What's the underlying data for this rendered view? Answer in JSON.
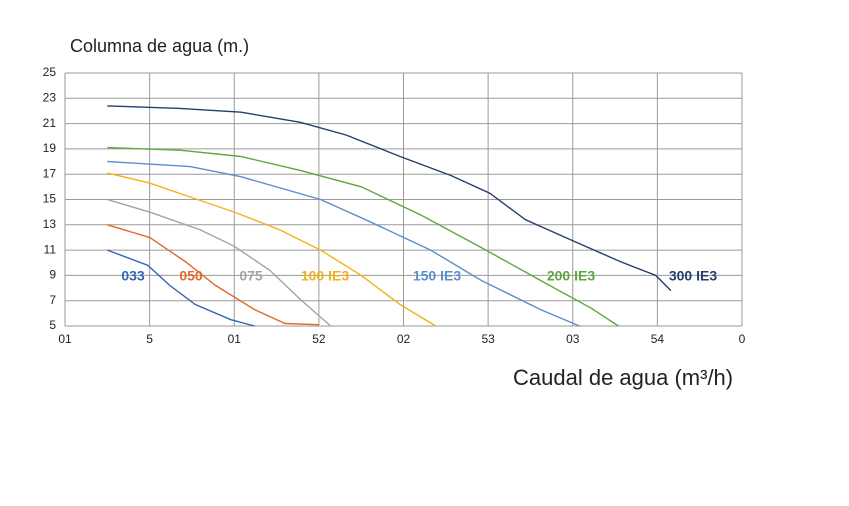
{
  "chart_data": {
    "type": "line",
    "y_label": "Columna de agua (m.)",
    "x_label": "Caudal de agua (m³/h)",
    "xlim": [
      0,
      40
    ],
    "xticks": [
      {
        "value": 0,
        "label": "01"
      },
      5,
      {
        "value": 10,
        "label": "01"
      },
      {
        "value": 15,
        "label": "52"
      },
      {
        "value": 20,
        "label": "02"
      },
      {
        "value": 25,
        "label": "53"
      },
      {
        "value": 30,
        "label": "03"
      },
      {
        "value": 35,
        "label": "54"
      },
      {
        "value": 40,
        "label": "0"
      }
    ],
    "ylim": [
      5,
      25
    ],
    "yticks": [
      5,
      7,
      9,
      11,
      13,
      15,
      17,
      19,
      21,
      23,
      25
    ],
    "grid": true,
    "series": [
      {
        "name": "033",
        "color": "#3465b0",
        "x": [
          2.5,
          4.9,
          6.2,
          7.7,
          9.8,
          11.2
        ],
        "values": [
          11,
          9.8,
          8.2,
          6.7,
          5.5,
          5
        ]
      },
      {
        "name": "050",
        "color": "#e06a2c",
        "x": [
          2.5,
          5,
          7.1,
          8.9,
          11.2,
          13,
          15
        ],
        "values": [
          13,
          12,
          10.1,
          8.2,
          6.3,
          5.2,
          5.1
        ]
      },
      {
        "name": "075",
        "color": "#a3a3a3",
        "x": [
          2.5,
          5,
          8,
          10,
          12.1,
          13.9,
          15.7
        ],
        "values": [
          15,
          14,
          12.6,
          11.3,
          9.4,
          7.1,
          5
        ]
      },
      {
        "name": "100 IE3",
        "color": "#f2b21a",
        "x": [
          2.5,
          5,
          7.4,
          10,
          12.7,
          15.1,
          17.5,
          19.8,
          21.9
        ],
        "values": [
          17.1,
          16.3,
          15.2,
          14,
          12.6,
          11,
          9,
          6.7,
          5
        ]
      },
      {
        "name": "150 IE3",
        "color": "#5b8fcc",
        "x": [
          2.5,
          7.4,
          10.4,
          15.1,
          18.1,
          21.6,
          24.6,
          28.1,
          30.4
        ],
        "values": [
          18,
          17.6,
          16.8,
          15,
          13.2,
          11,
          8.6,
          6.3,
          5
        ]
      },
      {
        "name": "200 IE3",
        "color": "#5fa640",
        "x": [
          2.5,
          6.8,
          10.4,
          13.9,
          17.5,
          21,
          24.6,
          28.1,
          31.1,
          32.7
        ],
        "values": [
          19.1,
          18.9,
          18.4,
          17.3,
          16,
          13.8,
          11.2,
          8.6,
          6.4,
          5
        ]
      },
      {
        "name": "300 IE3",
        "color": "#233f6b",
        "x": [
          2.5,
          6.8,
          10.4,
          13.9,
          16.6,
          19.8,
          22.8,
          25.1,
          27.2,
          29.9,
          32.8,
          34.9,
          35.8
        ],
        "values": [
          22.4,
          22.2,
          21.9,
          21.1,
          20.1,
          18.4,
          16.9,
          15.5,
          13.4,
          11.8,
          10.1,
          9,
          7.8
        ]
      }
    ]
  }
}
